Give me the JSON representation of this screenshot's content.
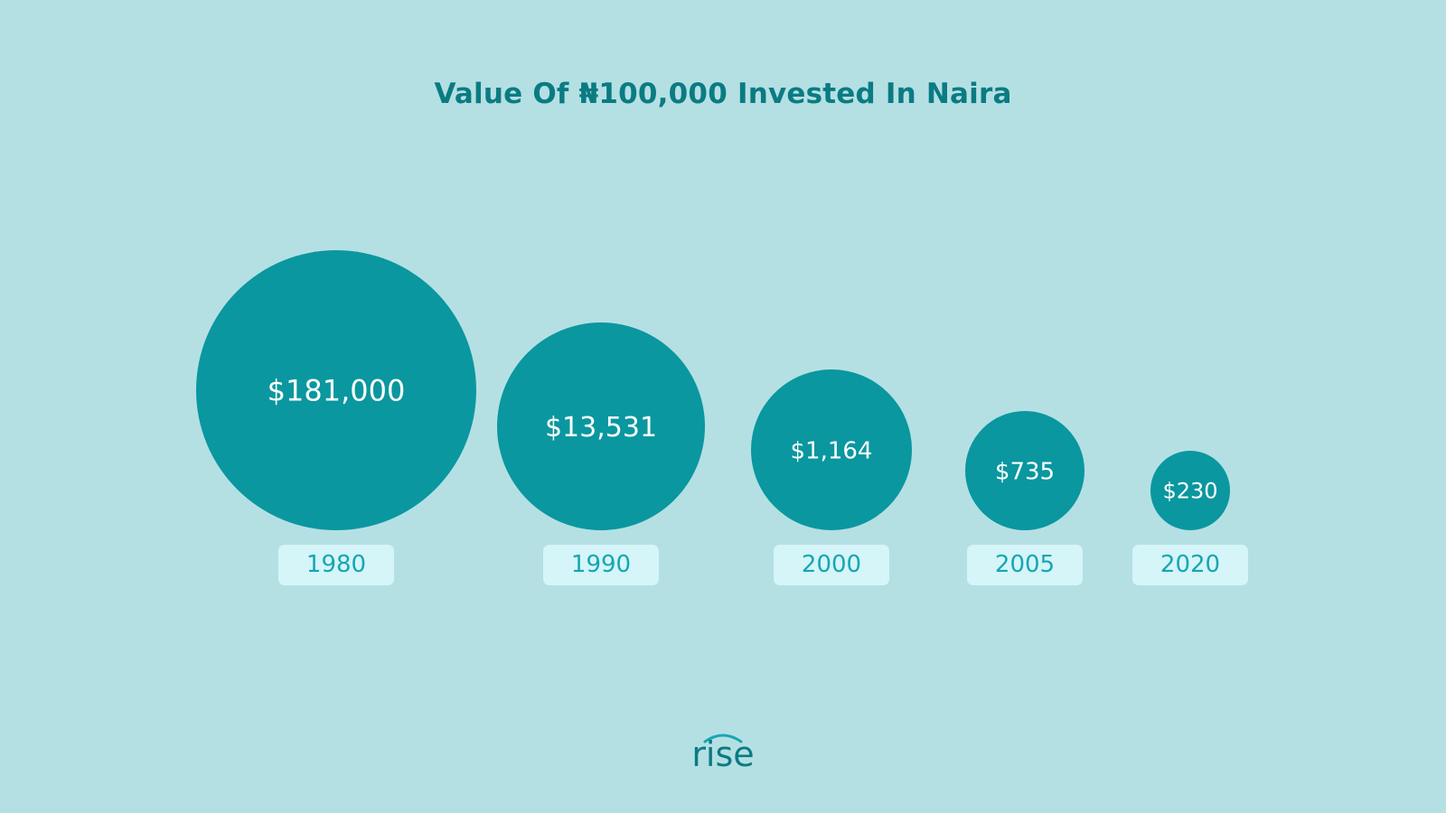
{
  "title": "Value Of ₦100,000 Invested In Naira",
  "chart_data": {
    "type": "bubble",
    "title": "Value Of ₦100,000 Invested In Naira",
    "categories": [
      "1980",
      "1990",
      "2000",
      "2005",
      "2020"
    ],
    "values": [
      181000,
      13531,
      1164,
      735,
      230
    ],
    "labels": [
      "$181,000",
      "$13,531",
      "$1,164",
      "$735",
      "$230"
    ],
    "unit": "USD",
    "grid": false,
    "colors": {
      "bubble": "#0a979f",
      "background": "#b4e0e4",
      "title": "#0b7b82",
      "year_label": "#17a6b2",
      "year_box": "#d5f5f8"
    }
  },
  "logo": {
    "text": "rise"
  }
}
